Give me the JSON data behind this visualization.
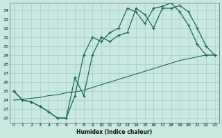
{
  "xlabel": "Humidex (Indice chaleur)",
  "x_ticks": [
    0,
    1,
    2,
    3,
    4,
    5,
    6,
    7,
    8,
    9,
    10,
    11,
    12,
    13,
    14,
    15,
    16,
    17,
    18,
    19,
    20,
    21,
    22,
    23
  ],
  "ylim": [
    21.5,
    34.8
  ],
  "xlim": [
    -0.5,
    23.5
  ],
  "yticks": [
    22,
    23,
    24,
    25,
    26,
    27,
    28,
    29,
    30,
    31,
    32,
    33,
    34
  ],
  "bg_color": "#c8e8e0",
  "line_color": "#1a6b5a",
  "grid_color": "#a8ccc4",
  "line1_x": [
    0,
    1,
    2,
    3,
    4,
    5,
    6,
    7,
    8,
    9,
    10,
    11,
    12,
    13,
    14,
    15,
    16,
    17,
    18,
    19,
    20,
    21,
    22,
    23
  ],
  "line1_y": [
    25.0,
    24.0,
    23.8,
    23.3,
    22.7,
    22.0,
    22.0,
    26.5,
    24.5,
    29.0,
    31.0,
    30.5,
    31.2,
    31.5,
    34.2,
    33.5,
    32.0,
    34.2,
    34.2,
    34.5,
    33.8,
    32.0,
    30.0,
    29.0
  ],
  "line2_x": [
    0,
    1,
    2,
    3,
    4,
    5,
    6,
    7,
    8,
    9,
    10,
    11,
    12,
    13,
    14,
    15,
    16,
    17,
    18,
    19,
    20,
    21,
    22,
    23
  ],
  "line2_y": [
    25.0,
    24.0,
    23.8,
    23.3,
    22.7,
    22.0,
    22.0,
    24.5,
    29.0,
    31.0,
    30.5,
    31.5,
    32.0,
    34.2,
    33.8,
    32.5,
    34.2,
    34.4,
    34.8,
    33.8,
    32.3,
    30.2,
    29.0,
    29.0
  ],
  "line3_x": [
    0,
    1,
    2,
    3,
    4,
    5,
    6,
    7,
    8,
    9,
    10,
    11,
    12,
    13,
    14,
    15,
    16,
    17,
    18,
    19,
    20,
    21,
    22,
    23
  ],
  "line3_y": [
    24.0,
    24.1,
    24.2,
    24.3,
    24.5,
    24.6,
    24.8,
    24.9,
    25.1,
    25.4,
    25.7,
    26.0,
    26.3,
    26.6,
    26.9,
    27.2,
    27.5,
    27.8,
    28.1,
    28.4,
    28.6,
    28.8,
    29.0,
    29.0
  ]
}
